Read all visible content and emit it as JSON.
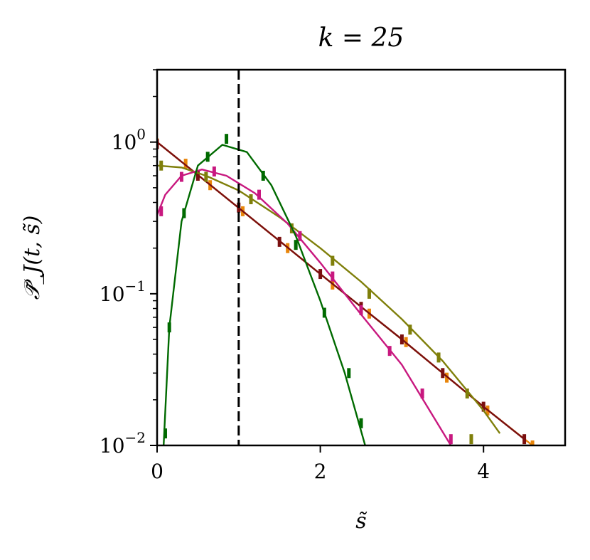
{
  "chart_data": {
    "type": "line",
    "title": "k = 25",
    "xlabel": "s̃",
    "ylabel": "𝒫̃_J(t, s̃)",
    "xlim": [
      0,
      5
    ],
    "ylim": [
      0.01,
      3
    ],
    "yscale": "log",
    "grid": false,
    "x_ticks": [
      0,
      2,
      4
    ],
    "x_tick_labels": [
      "0",
      "2",
      "4"
    ],
    "y_ticks": [
      0.01,
      0.1,
      1
    ],
    "y_tick_labels": [
      {
        "base": "10",
        "exp": "−2"
      },
      {
        "base": "10",
        "exp": "−1"
      },
      {
        "base": "10",
        "exp": "0"
      }
    ],
    "vline": {
      "x": 1,
      "color": "#000000",
      "style": "dashed"
    },
    "series": [
      {
        "color": "#e8850a",
        "line": [
          [
            0,
            1.0
          ],
          [
            0.5,
            0.607
          ],
          [
            1,
            0.368
          ],
          [
            1.5,
            0.223
          ],
          [
            2,
            0.135
          ],
          [
            2.5,
            0.082
          ],
          [
            3,
            0.05
          ],
          [
            3.5,
            0.03
          ],
          [
            4,
            0.018
          ],
          [
            4.6,
            0.01
          ]
        ],
        "markers": [
          [
            0,
            0.98
          ],
          [
            0.35,
            0.72
          ],
          [
            0.65,
            0.52
          ],
          [
            1.05,
            0.35
          ],
          [
            1.6,
            0.2
          ],
          [
            2.15,
            0.115
          ],
          [
            2.6,
            0.074
          ],
          [
            3.05,
            0.048
          ],
          [
            3.55,
            0.028
          ],
          [
            4.05,
            0.017
          ],
          [
            4.6,
            0.01
          ]
        ]
      },
      {
        "color": "#7a0f0f",
        "line": [
          [
            0,
            1.0
          ],
          [
            0.5,
            0.607
          ],
          [
            1,
            0.368
          ],
          [
            1.5,
            0.223
          ],
          [
            2,
            0.135
          ],
          [
            2.5,
            0.082
          ],
          [
            3,
            0.05
          ],
          [
            3.5,
            0.03
          ],
          [
            4,
            0.018
          ],
          [
            4.5,
            0.011
          ]
        ],
        "markers": [
          [
            0,
            0.97
          ],
          [
            0.5,
            0.6
          ],
          [
            1,
            0.37
          ],
          [
            1.5,
            0.22
          ],
          [
            2,
            0.135
          ],
          [
            2.5,
            0.082
          ],
          [
            3,
            0.05
          ],
          [
            3.5,
            0.03
          ],
          [
            4,
            0.018
          ],
          [
            4.5,
            0.011
          ]
        ]
      },
      {
        "color": "#7f7f0a",
        "line": [
          [
            0,
            0.7
          ],
          [
            0.3,
            0.68
          ],
          [
            0.6,
            0.6
          ],
          [
            1,
            0.48
          ],
          [
            1.5,
            0.32
          ],
          [
            2,
            0.2
          ],
          [
            2.5,
            0.12
          ],
          [
            3,
            0.068
          ],
          [
            3.5,
            0.036
          ],
          [
            4,
            0.017
          ],
          [
            4.2,
            0.012
          ]
        ],
        "markers": [
          [
            0.05,
            0.7
          ],
          [
            0.6,
            0.59
          ],
          [
            1.15,
            0.42
          ],
          [
            1.65,
            0.27
          ],
          [
            2.15,
            0.165
          ],
          [
            2.6,
            0.1
          ],
          [
            3.1,
            0.058
          ],
          [
            3.45,
            0.038
          ],
          [
            3.8,
            0.022
          ],
          [
            3.85,
            0.011
          ]
        ]
      },
      {
        "color": "#c8187f",
        "line": [
          [
            0,
            0.33
          ],
          [
            0.1,
            0.45
          ],
          [
            0.3,
            0.6
          ],
          [
            0.55,
            0.66
          ],
          [
            0.85,
            0.6
          ],
          [
            1.2,
            0.46
          ],
          [
            1.6,
            0.29
          ],
          [
            2,
            0.16
          ],
          [
            2.5,
            0.073
          ],
          [
            3,
            0.034
          ],
          [
            3.6,
            0.01
          ]
        ],
        "markers": [
          [
            0.05,
            0.35
          ],
          [
            0.3,
            0.59
          ],
          [
            0.7,
            0.64
          ],
          [
            1.25,
            0.45
          ],
          [
            1.75,
            0.24
          ],
          [
            2.15,
            0.13
          ],
          [
            2.5,
            0.078
          ],
          [
            2.85,
            0.042
          ],
          [
            3.25,
            0.022
          ],
          [
            3.6,
            0.011
          ]
        ]
      },
      {
        "color": "#006a00",
        "line": [
          [
            0.08,
            0.01
          ],
          [
            0.15,
            0.06
          ],
          [
            0.3,
            0.3
          ],
          [
            0.5,
            0.7
          ],
          [
            0.8,
            0.96
          ],
          [
            1.1,
            0.86
          ],
          [
            1.4,
            0.52
          ],
          [
            1.7,
            0.24
          ],
          [
            2.0,
            0.09
          ],
          [
            2.3,
            0.03
          ],
          [
            2.55,
            0.01
          ]
        ],
        "markers": [
          [
            0.1,
            0.012
          ],
          [
            0.15,
            0.06
          ],
          [
            0.33,
            0.34
          ],
          [
            0.62,
            0.8
          ],
          [
            0.85,
            1.05
          ],
          [
            1.3,
            0.6
          ],
          [
            1.7,
            0.21
          ],
          [
            2.05,
            0.075
          ],
          [
            2.35,
            0.03
          ],
          [
            2.5,
            0.014
          ]
        ]
      }
    ]
  }
}
